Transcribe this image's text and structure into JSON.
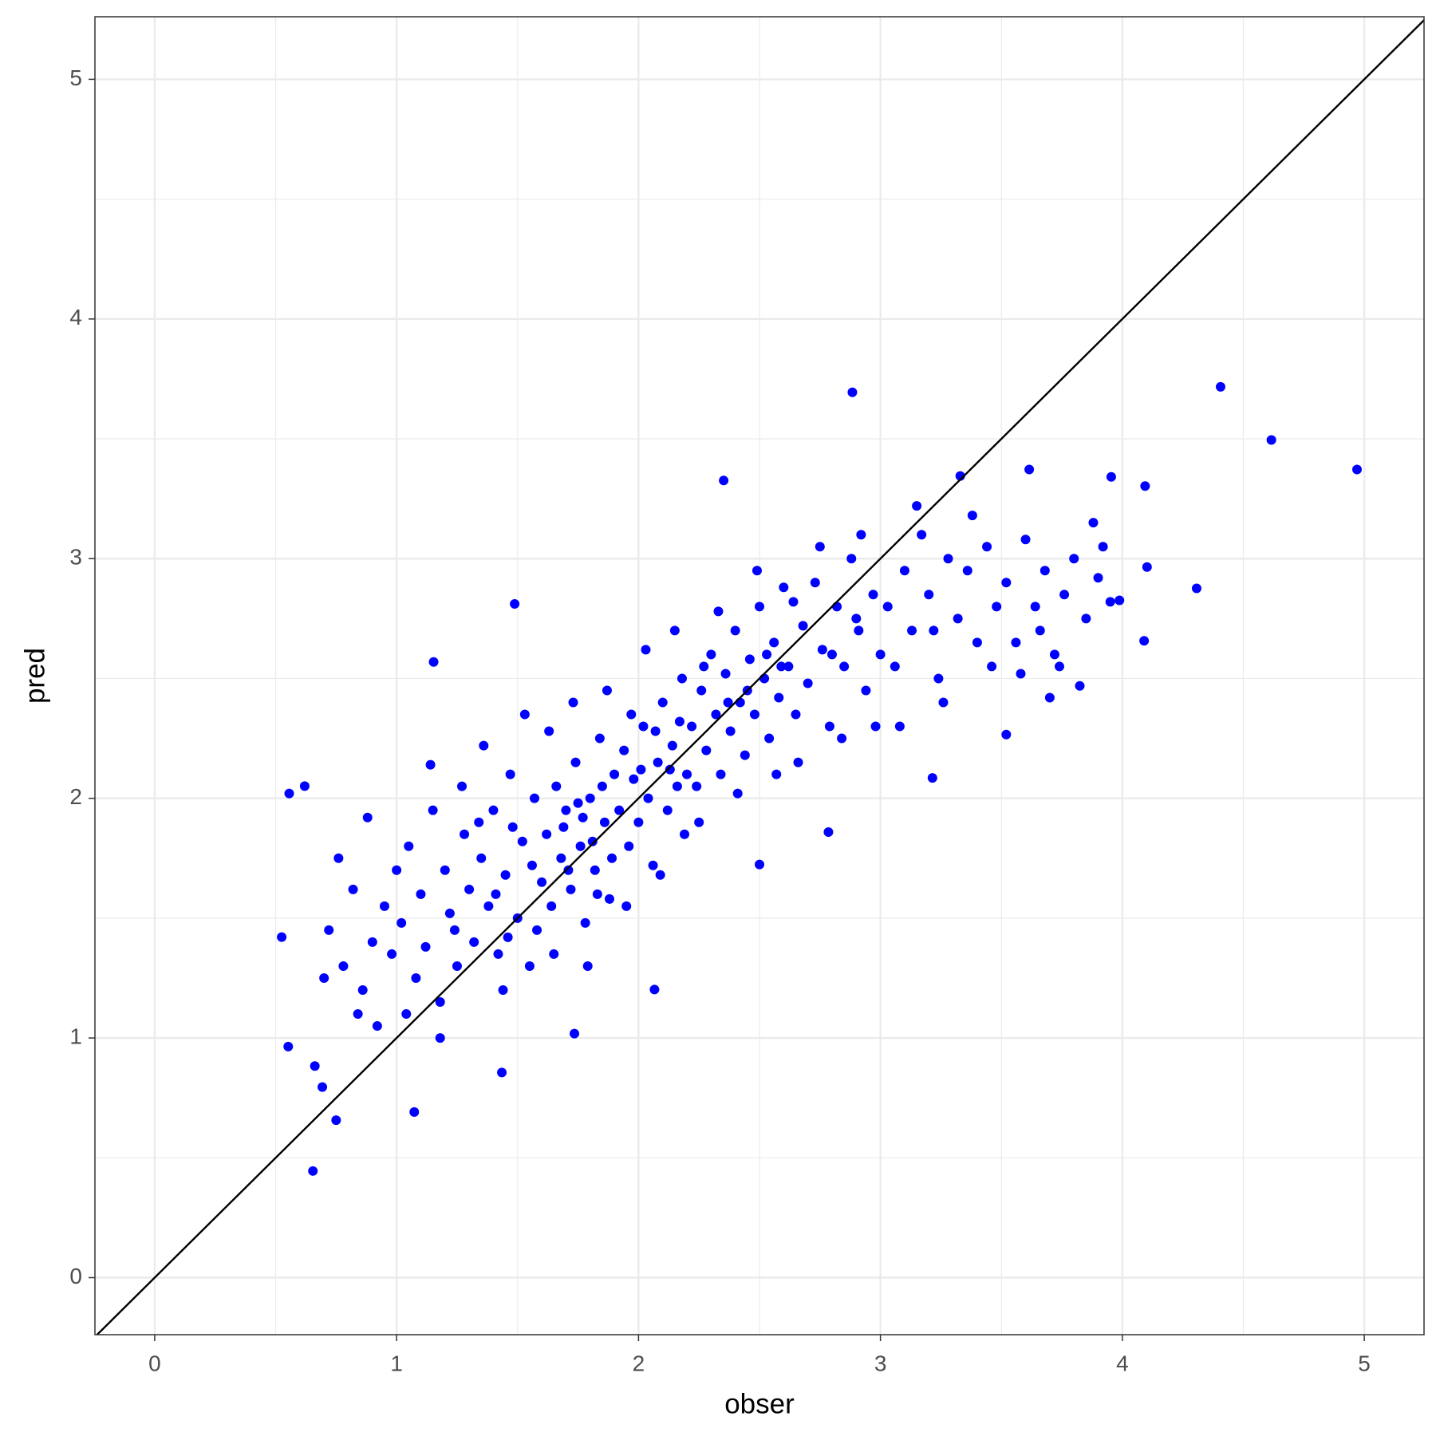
{
  "chart_data": {
    "type": "scatter",
    "x_label": "obser",
    "y_label": "pred",
    "color": "#0000ff",
    "xlim": [
      -0.247,
      5.247
    ],
    "ylim": [
      -0.238,
      5.261
    ],
    "xticks": [
      0,
      1,
      2,
      3,
      4,
      5
    ],
    "yticks": [
      0,
      1,
      2,
      3,
      4,
      5
    ],
    "grid": true,
    "minor_grid": true,
    "identity_line": true,
    "x": [
      2.884,
      4.406,
      4.616,
      4.97,
      2.352,
      4.307,
      0.654,
      0.75,
      0.525,
      0.556,
      0.62,
      1.488,
      1.153,
      3.52,
      3.215,
      3.824,
      4.102,
      4.094,
      3.954,
      3.615,
      3.33,
      2.785,
      2.5,
      2.066,
      1.735,
      1.435,
      1.073,
      0.662,
      0.693,
      0.552,
      4.09,
      3.988,
      0.72,
      0.78,
      0.82,
      0.86,
      0.88,
      0.92,
      0.95,
      0.98,
      0.76,
      0.84,
      0.9,
      0.7,
      1.02,
      1.05,
      1.08,
      1.1,
      1.12,
      1.15,
      1.18,
      1.2,
      1.22,
      1.25,
      1.28,
      1.3,
      1.04,
      1.14,
      1.24,
      1.27,
      1.0,
      1.18,
      1.32,
      1.35,
      1.38,
      1.4,
      1.42,
      1.45,
      1.47,
      1.5,
      1.52,
      1.55,
      1.57,
      1.6,
      1.36,
      1.44,
      1.53,
      1.58,
      1.48,
      1.41,
      1.56,
      1.34,
      1.46,
      1.62,
      1.64,
      1.66,
      1.68,
      1.7,
      1.72,
      1.74,
      1.76,
      1.78,
      1.8,
      1.82,
      1.84,
      1.86,
      1.88,
      1.9,
      1.65,
      1.73,
      1.79,
      1.87,
      1.63,
      1.69,
      1.75,
      1.81,
      1.85,
      1.89,
      1.71,
      1.77,
      1.83,
      1.92,
      1.94,
      1.96,
      1.98,
      2.0,
      2.02,
      2.04,
      2.06,
      2.08,
      2.1,
      2.12,
      2.14,
      2.16,
      2.18,
      2.2,
      1.95,
      2.03,
      2.09,
      2.15,
      2.19,
      1.97,
      2.01,
      2.07,
      2.13,
      2.17,
      2.22,
      2.24,
      2.26,
      2.28,
      2.3,
      2.32,
      2.34,
      2.36,
      2.38,
      2.4,
      2.42,
      2.44,
      2.46,
      2.48,
      2.5,
      2.52,
      2.54,
      2.56,
      2.58,
      2.6,
      2.25,
      2.33,
      2.41,
      2.49,
      2.57,
      2.27,
      2.37,
      2.45,
      2.53,
      2.59,
      2.62,
      2.65,
      2.68,
      2.7,
      2.73,
      2.76,
      2.79,
      2.82,
      2.85,
      2.88,
      2.91,
      2.94,
      2.97,
      3.0,
      2.66,
      2.75,
      2.84,
      2.92,
      2.98,
      2.64,
      2.8,
      2.9,
      3.03,
      3.06,
      3.1,
      3.13,
      3.17,
      3.2,
      3.24,
      3.28,
      3.32,
      3.36,
      3.4,
      3.44,
      3.48,
      3.08,
      3.15,
      3.26,
      3.38,
      3.46,
      3.22,
      3.52,
      3.56,
      3.6,
      3.64,
      3.68,
      3.72,
      3.76,
      3.8,
      3.85,
      3.9,
      3.58,
      3.66,
      3.74,
      3.88,
      3.95,
      3.7,
      3.92
    ],
    "y": [
      3.694,
      3.717,
      3.495,
      3.372,
      3.326,
      2.876,
      0.445,
      0.657,
      1.421,
      2.02,
      2.051,
      2.811,
      2.569,
      2.266,
      2.085,
      2.469,
      2.965,
      3.303,
      3.341,
      3.372,
      3.345,
      1.859,
      1.724,
      1.202,
      1.018,
      0.856,
      0.691,
      0.883,
      0.795,
      0.964,
      2.657,
      2.826,
      1.45,
      1.3,
      1.62,
      1.2,
      1.92,
      1.05,
      1.55,
      1.35,
      1.75,
      1.1,
      1.4,
      1.25,
      1.48,
      1.8,
      1.25,
      1.6,
      1.38,
      1.95,
      1.15,
      1.7,
      1.52,
      1.3,
      1.85,
      1.62,
      1.1,
      2.14,
      1.45,
      2.05,
      1.7,
      1.0,
      1.4,
      1.75,
      1.55,
      1.95,
      1.35,
      1.68,
      2.1,
      1.5,
      1.82,
      1.3,
      2.0,
      1.65,
      2.22,
      1.2,
      2.35,
      1.45,
      1.88,
      1.6,
      1.72,
      1.9,
      1.42,
      1.85,
      1.55,
      2.05,
      1.75,
      1.95,
      1.62,
      2.15,
      1.8,
      1.48,
      2.0,
      1.7,
      2.25,
      1.9,
      1.58,
      2.1,
      1.35,
      2.4,
      1.3,
      2.45,
      2.28,
      1.88,
      1.98,
      1.82,
      2.05,
      1.75,
      1.7,
      1.92,
      1.6,
      1.95,
      2.2,
      1.8,
      2.08,
      1.9,
      2.3,
      2.0,
      1.72,
      2.15,
      2.4,
      1.95,
      2.22,
      2.05,
      2.5,
      2.1,
      1.55,
      2.62,
      1.68,
      2.7,
      1.85,
      2.35,
      2.12,
      2.28,
      2.12,
      2.32,
      2.3,
      2.05,
      2.45,
      2.2,
      2.6,
      2.35,
      2.1,
      2.52,
      2.28,
      2.7,
      2.4,
      2.18,
      2.58,
      2.35,
      2.8,
      2.5,
      2.25,
      2.65,
      2.42,
      2.88,
      1.9,
      2.78,
      2.02,
      2.95,
      2.1,
      2.55,
      2.4,
      2.45,
      2.6,
      2.55,
      2.55,
      2.35,
      2.72,
      2.48,
      2.9,
      2.62,
      2.3,
      2.8,
      2.55,
      3.0,
      2.7,
      2.45,
      2.85,
      2.6,
      2.15,
      3.05,
      2.25,
      3.1,
      2.3,
      2.82,
      2.6,
      2.75,
      2.8,
      2.55,
      2.95,
      2.7,
      3.1,
      2.85,
      2.5,
      3.0,
      2.75,
      2.95,
      2.65,
      3.05,
      2.8,
      2.3,
      3.22,
      2.4,
      3.18,
      2.55,
      2.7,
      2.9,
      2.65,
      3.08,
      2.8,
      2.95,
      2.6,
      2.85,
      3.0,
      2.75,
      2.92,
      2.52,
      2.7,
      2.55,
      3.15,
      2.82,
      2.42,
      3.05
    ]
  }
}
